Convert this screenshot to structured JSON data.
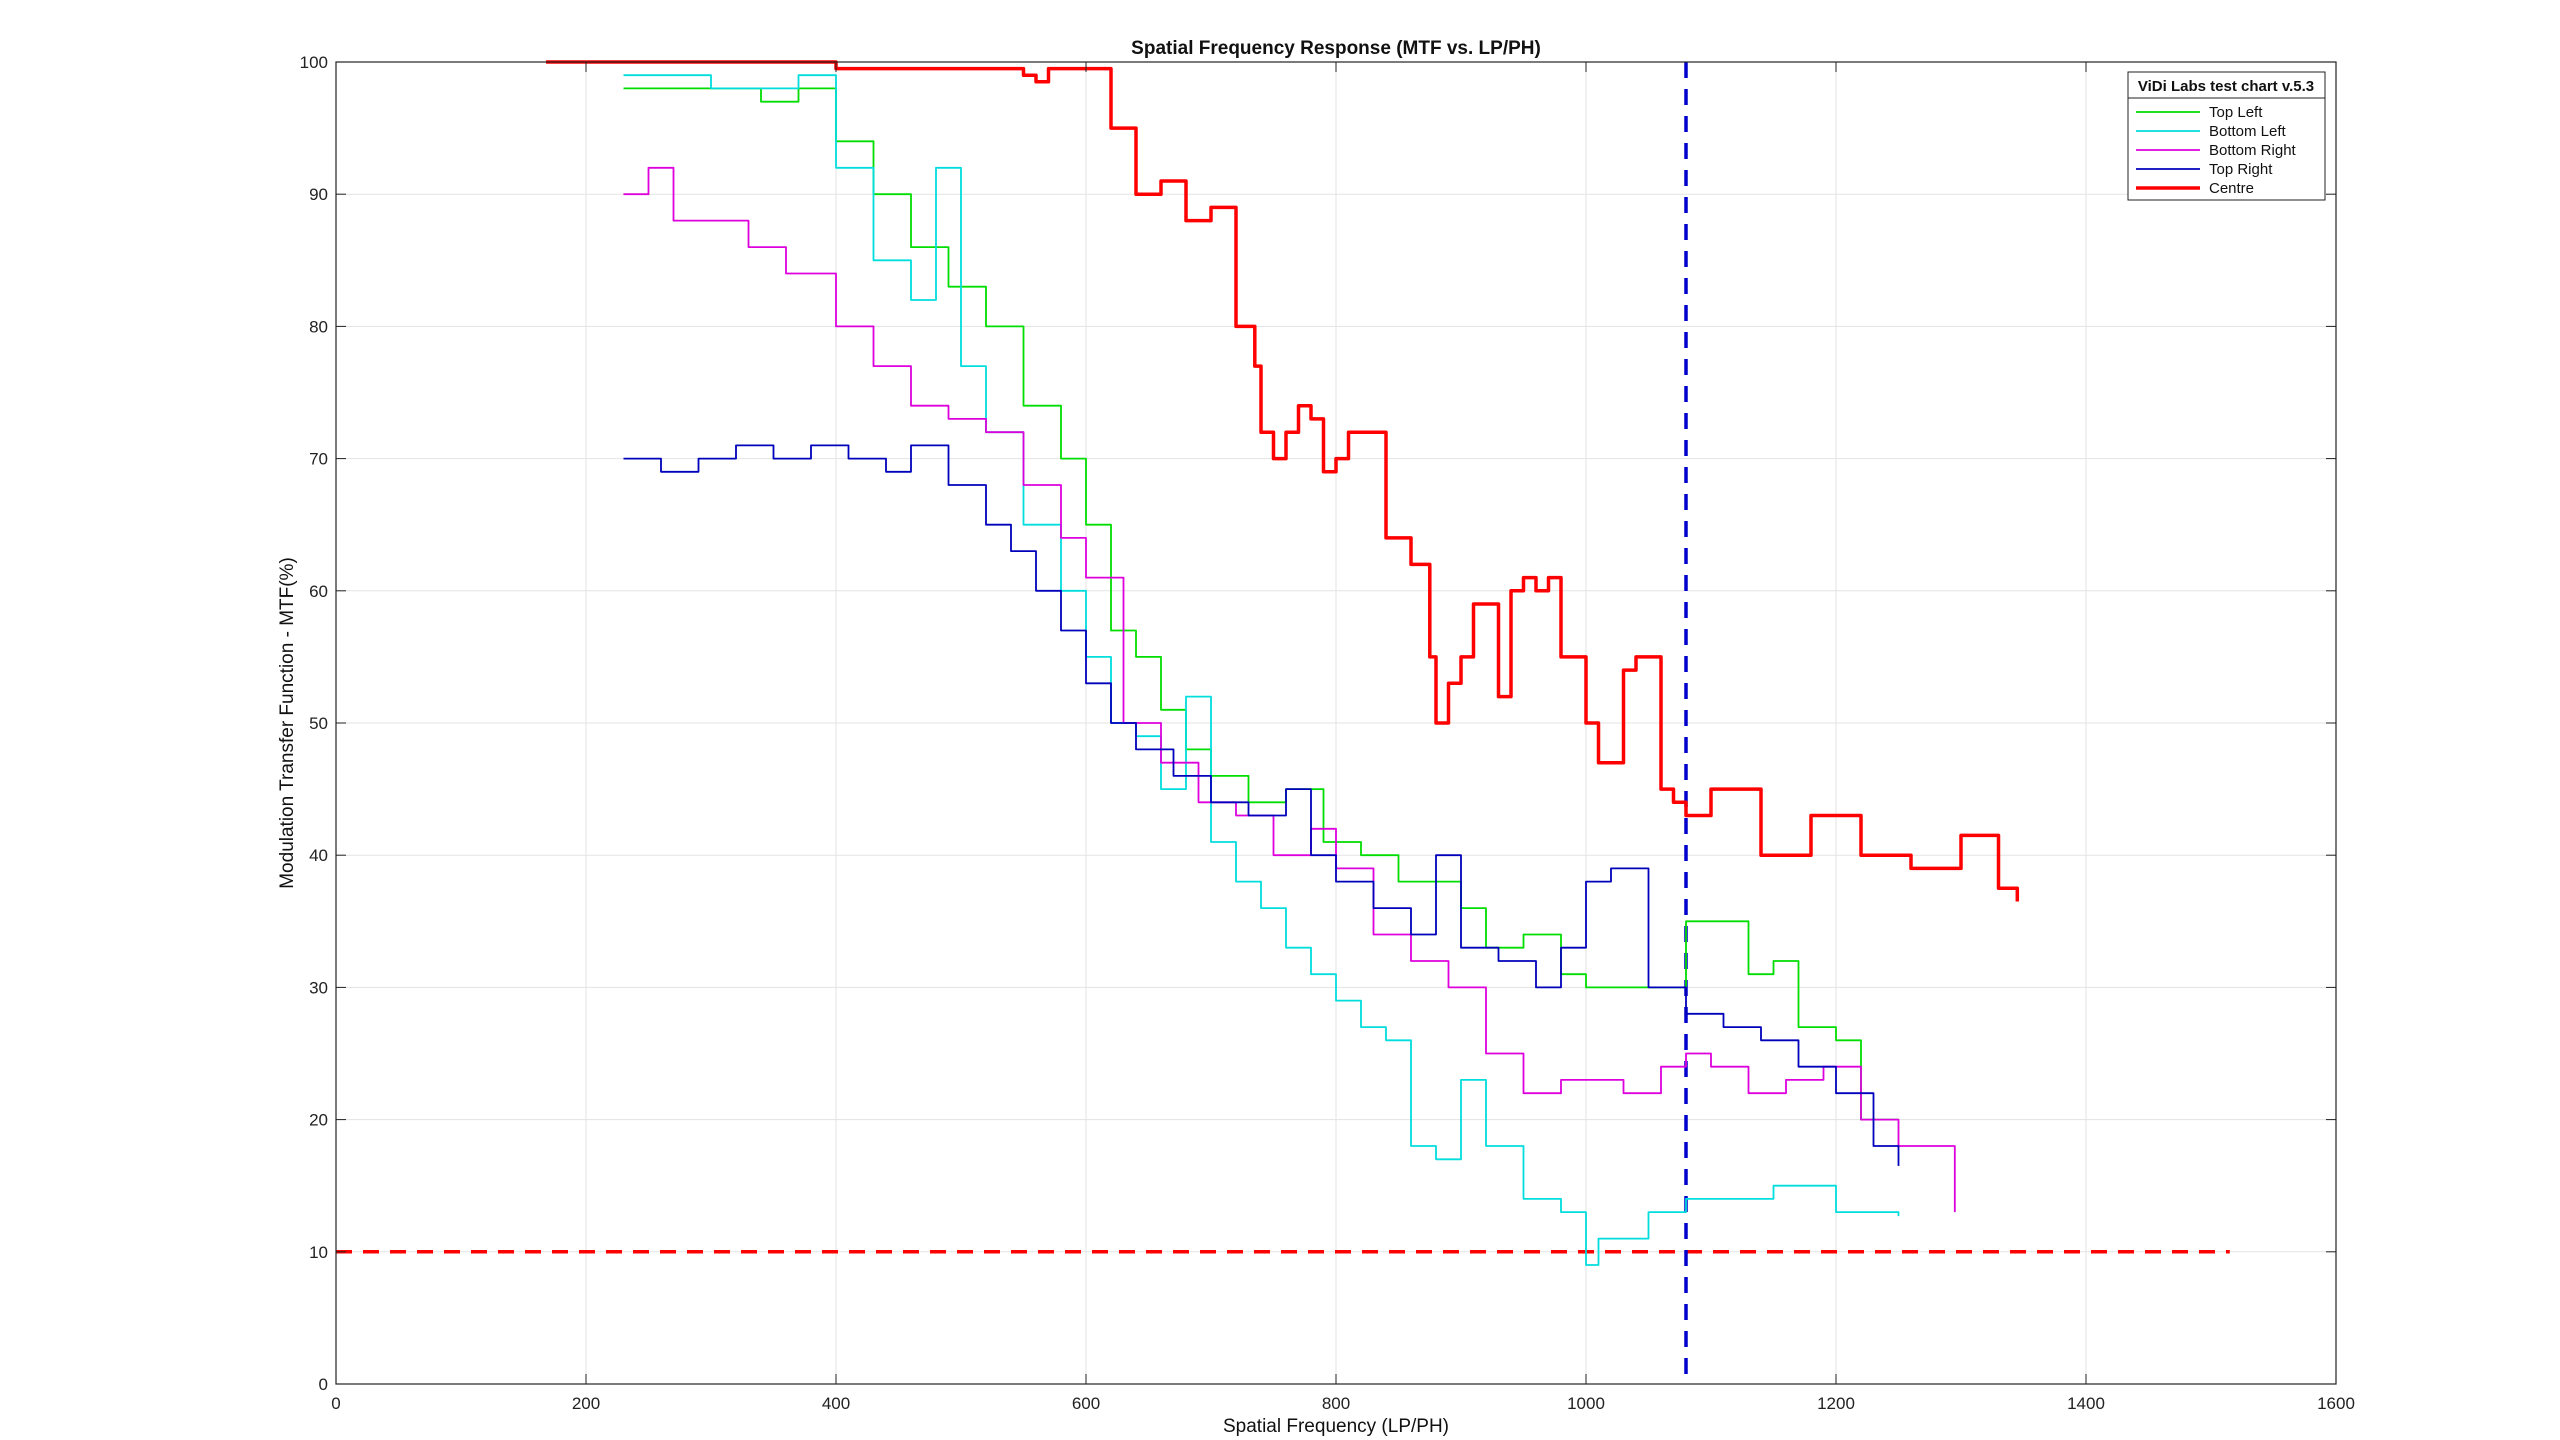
{
  "chart_data": {
    "type": "line",
    "title": "Spatial Frequency Response (MTF vs. LP/PH)",
    "xlabel": "Spatial Frequency (LP/PH)",
    "ylabel": "Modulation Transfer Function - MTF(%)",
    "xlim": [
      0,
      1600
    ],
    "ylim": [
      0,
      100
    ],
    "xticks": [
      0,
      200,
      400,
      600,
      800,
      1000,
      1200,
      1400,
      1600
    ],
    "yticks": [
      0,
      10,
      20,
      30,
      40,
      50,
      60,
      70,
      80,
      90,
      100
    ],
    "grid": true,
    "legend": {
      "title": "ViDi Labs test chart v.5.3",
      "position": "top-right"
    },
    "reference_lines": [
      {
        "orientation": "horizontal",
        "value": 10,
        "color": "#ff0000",
        "style": "dashed"
      },
      {
        "orientation": "vertical",
        "value": 1080,
        "color": "#0000cc",
        "style": "dashed"
      }
    ],
    "series": [
      {
        "name": "Top Left",
        "color": "#00dd00",
        "x": [
          230,
          260,
          300,
          340,
          370,
          400,
          430,
          460,
          490,
          520,
          550,
          580,
          600,
          620,
          640,
          660,
          680,
          700,
          730,
          760,
          790,
          820,
          850,
          880,
          900,
          920,
          950,
          980,
          1000,
          1050,
          1080,
          1100,
          1130,
          1150,
          1170,
          1200,
          1220,
          1250
        ],
        "y": [
          98,
          98,
          98,
          97,
          98,
          94,
          90,
          86,
          83,
          80,
          74,
          70,
          65,
          57,
          55,
          51,
          48,
          46,
          44,
          45,
          41,
          40,
          38,
          38,
          36,
          33,
          34,
          31,
          30,
          30,
          35,
          35,
          31,
          32,
          27,
          26,
          20,
          20
        ]
      },
      {
        "name": "Bottom Left",
        "color": "#00dddd",
        "x": [
          230,
          260,
          300,
          340,
          370,
          400,
          430,
          460,
          480,
          500,
          520,
          550,
          580,
          600,
          620,
          640,
          660,
          680,
          700,
          720,
          740,
          760,
          780,
          800,
          820,
          840,
          860,
          880,
          900,
          920,
          950,
          980,
          1000,
          1010,
          1050,
          1080,
          1100,
          1150,
          1200,
          1250
        ],
        "y": [
          99,
          99,
          98,
          98,
          99,
          92,
          85,
          82,
          92,
          77,
          72,
          65,
          60,
          55,
          50,
          49,
          45,
          52,
          41,
          38,
          36,
          33,
          31,
          29,
          27,
          26,
          18,
          17,
          23,
          18,
          14,
          13,
          9,
          11,
          13,
          14,
          14,
          15,
          13,
          12.7
        ]
      },
      {
        "name": "Bottom Right",
        "color": "#dd00dd",
        "x": [
          230,
          250,
          270,
          300,
          330,
          360,
          400,
          430,
          460,
          490,
          520,
          550,
          580,
          600,
          630,
          660,
          690,
          720,
          750,
          780,
          800,
          830,
          860,
          890,
          920,
          950,
          980,
          1000,
          1030,
          1060,
          1080,
          1100,
          1130,
          1160,
          1190,
          1220,
          1250,
          1280,
          1295
        ],
        "y": [
          90,
          92,
          88,
          88,
          86,
          84,
          80,
          77,
          74,
          73,
          72,
          68,
          64,
          61,
          50,
          47,
          44,
          43,
          40,
          42,
          39,
          34,
          32,
          30,
          25,
          22,
          23,
          23,
          22,
          24,
          25,
          24,
          22,
          23,
          24,
          20,
          18,
          18,
          13
        ]
      },
      {
        "name": "Top Right",
        "color": "#0000bb",
        "x": [
          230,
          260,
          290,
          320,
          350,
          380,
          410,
          440,
          460,
          490,
          520,
          540,
          560,
          580,
          600,
          620,
          640,
          670,
          700,
          730,
          760,
          780,
          800,
          830,
          860,
          880,
          900,
          930,
          960,
          980,
          1000,
          1020,
          1050,
          1080,
          1110,
          1140,
          1170,
          1200,
          1230,
          1250
        ],
        "y": [
          70,
          69,
          70,
          71,
          70,
          71,
          70,
          69,
          71,
          68,
          65,
          63,
          60,
          57,
          53,
          50,
          48,
          46,
          44,
          43,
          45,
          40,
          38,
          36,
          34,
          40,
          33,
          32,
          30,
          33,
          38,
          39,
          30,
          28,
          27,
          26,
          24,
          22,
          18,
          16.5
        ]
      },
      {
        "name": "Centre",
        "color": "#ff0000",
        "x": [
          168,
          200,
          300,
          400,
          450,
          500,
          525,
          550,
          560,
          570,
          590,
          600,
          620,
          640,
          660,
          680,
          700,
          720,
          735,
          740,
          750,
          760,
          770,
          780,
          790,
          800,
          810,
          820,
          840,
          860,
          875,
          880,
          890,
          900,
          910,
          920,
          930,
          940,
          950,
          960,
          970,
          980,
          990,
          1000,
          1010,
          1020,
          1030,
          1040,
          1050,
          1060,
          1070,
          1080,
          1090,
          1100,
          1120,
          1140,
          1160,
          1180,
          1200,
          1220,
          1240,
          1260,
          1280,
          1300,
          1320,
          1330,
          1345
        ],
        "y": [
          100,
          100,
          100,
          99.5,
          99.5,
          99.5,
          99.5,
          99,
          98.5,
          99.5,
          99.5,
          99.5,
          95,
          90,
          91,
          88,
          89,
          80,
          77,
          72,
          70,
          72,
          74,
          73,
          69,
          70,
          72,
          72,
          64,
          62,
          55,
          50,
          53,
          55,
          59,
          59,
          52,
          60,
          61,
          60,
          61,
          55,
          55,
          50,
          47,
          47,
          54,
          55,
          55,
          45,
          44,
          43,
          43,
          45,
          45,
          40,
          40,
          43,
          43,
          40,
          40,
          39,
          39,
          41.5,
          41.5,
          37.5,
          36.5
        ]
      }
    ]
  }
}
